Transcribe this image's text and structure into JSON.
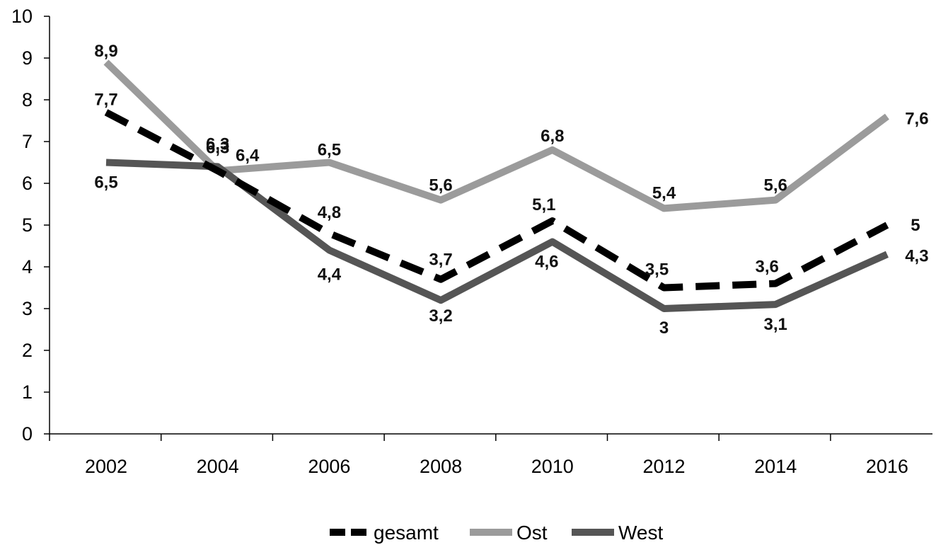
{
  "chart_data": {
    "type": "line",
    "categories": [
      "2002",
      "2004",
      "2006",
      "2008",
      "2010",
      "2012",
      "2014",
      "2016"
    ],
    "y_ticks": [
      "0",
      "1",
      "2",
      "3",
      "4",
      "5",
      "6",
      "7",
      "8",
      "9",
      "10"
    ],
    "ylim": [
      0,
      10
    ],
    "grid": false,
    "legend_position": "bottom",
    "series": [
      {
        "name": "gesamt",
        "values": [
          7.7,
          6.3,
          4.8,
          3.7,
          5.1,
          3.5,
          3.6,
          5
        ],
        "labels": [
          "7,7",
          "6,3",
          "4,8",
          "3,7",
          "5,1",
          "3,5",
          "3,6",
          "5"
        ],
        "color": "#000000",
        "dashed": true
      },
      {
        "name": "Ost",
        "values": [
          8.9,
          6.3,
          6.5,
          5.6,
          6.8,
          5.4,
          5.6,
          7.6
        ],
        "labels": [
          "8,9",
          "6,3",
          "6,5",
          "5,6",
          "6,8",
          "5,4",
          "5,6",
          "7,6"
        ],
        "color": "#9b9b9b",
        "dashed": false
      },
      {
        "name": "West",
        "values": [
          6.5,
          6.4,
          4.4,
          3.2,
          4.6,
          3,
          3.1,
          4.3
        ],
        "labels": [
          "6,5",
          "6,4",
          "4,4",
          "3,2",
          "4,6",
          "3",
          "3,1",
          "4,3"
        ],
        "color": "#555555",
        "dashed": false
      }
    ]
  }
}
